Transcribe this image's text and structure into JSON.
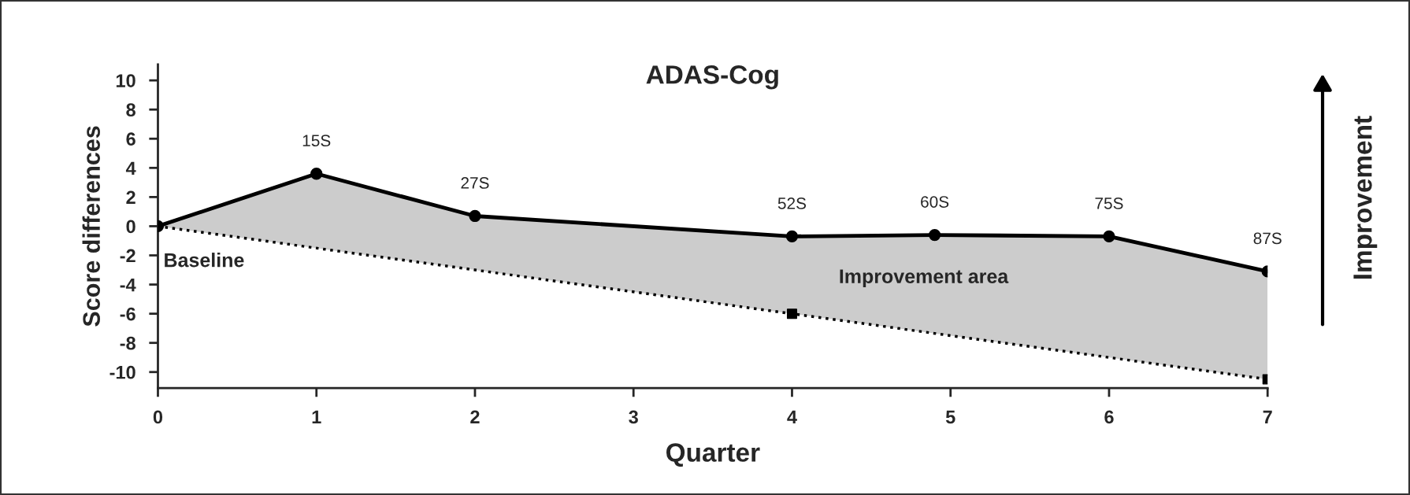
{
  "chart_data": {
    "type": "line",
    "title": "ADAS-Cog",
    "xlabel": "Quarter",
    "ylabel": "Score differences",
    "xlim": [
      0,
      7
    ],
    "xticks": [
      0,
      1,
      2,
      3,
      4,
      5,
      6,
      7
    ],
    "ylim": [
      -11.1,
      11.1
    ],
    "yticks": [
      -10,
      -8,
      -6,
      -4,
      -2,
      0,
      2,
      4,
      6,
      8,
      10
    ],
    "grid": false,
    "legend": false,
    "series": [
      {
        "color": "#000000",
        "marker": "circle",
        "line_style": "solid",
        "x": [
          0,
          1,
          2,
          4,
          4.9,
          6,
          7
        ],
        "values": [
          0,
          3.6,
          0.7,
          -0.7,
          -0.6,
          -0.7,
          -3.1
        ],
        "lower": [
          0,
          -1.5,
          -3,
          -6,
          -7.35,
          -9,
          -10.5
        ],
        "upper": [
          0,
          3.6,
          0.7,
          -0.7,
          -0.6,
          -0.7,
          -3.1
        ]
      },
      {
        "type": "line",
        "color": "#000000",
        "marker": "none",
        "line_style": "dotted",
        "x": [
          0,
          7
        ],
        "values": [
          0,
          -10.5
        ]
      },
      {
        "type": "scatter",
        "color": "#000000",
        "marker": "square",
        "x": [
          4,
          7
        ],
        "values": [
          -6,
          -10.5
        ]
      }
    ],
    "annotations": [
      {
        "text": "15S",
        "x": 1,
        "y": 3.6
      },
      {
        "text": "27S",
        "x": 2,
        "y": 0.7
      },
      {
        "text": "52S",
        "x": 4,
        "y": -0.7
      },
      {
        "text": "60S",
        "x": 4.9,
        "y": -0.6
      },
      {
        "text": "75S",
        "x": 6,
        "y": -0.7
      },
      {
        "text": "87S",
        "x": 7,
        "y": -3.1
      },
      "Baseline",
      "Improvement area",
      "Improvement"
    ]
  }
}
